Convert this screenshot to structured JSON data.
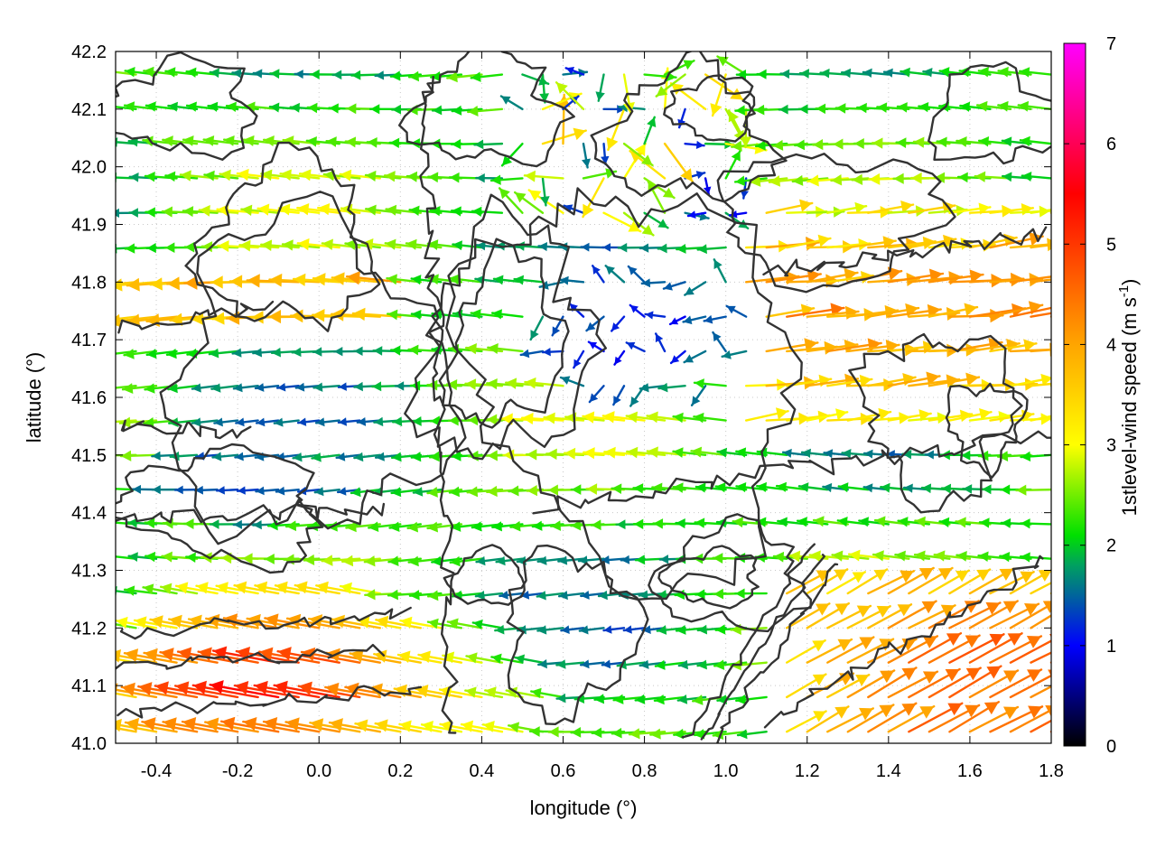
{
  "chart_data": {
    "type": "vector-field",
    "title": "",
    "xlabel": "longitude (°)",
    "ylabel": "latitude (°)",
    "colorbar_label_prefix": "1stlevel-wind speed (m s",
    "colorbar_label_exp": "-1",
    "colorbar_label_suffix": ")",
    "xlim": [
      -0.5,
      1.8
    ],
    "ylim": [
      41.0,
      42.2
    ],
    "xticks": [
      "-0.4",
      "-0.2",
      "0.0",
      "0.2",
      "0.4",
      "0.6",
      "0.8",
      "1.0",
      "1.2",
      "1.4",
      "1.6",
      "1.8"
    ],
    "xtick_values": [
      -0.4,
      -0.2,
      0.0,
      0.2,
      0.4,
      0.6,
      0.8,
      1.0,
      1.2,
      1.4,
      1.6,
      1.8
    ],
    "yticks": [
      "41.0",
      "41.1",
      "41.2",
      "41.3",
      "41.4",
      "41.5",
      "41.6",
      "41.7",
      "41.8",
      "41.9",
      "42.0",
      "42.1",
      "42.2"
    ],
    "ytick_values": [
      41.0,
      41.1,
      41.2,
      41.3,
      41.4,
      41.5,
      41.6,
      41.7,
      41.8,
      41.9,
      42.0,
      42.1,
      42.2
    ],
    "colorbar_range": [
      0,
      7
    ],
    "colorbar_ticks": [
      "0",
      "1",
      "2",
      "3",
      "4",
      "5",
      "6",
      "7"
    ],
    "colorbar_tick_values": [
      0,
      1,
      2,
      3,
      4,
      5,
      6,
      7
    ],
    "colormap_stops": [
      {
        "v": 0,
        "c": "#000000"
      },
      {
        "v": 1,
        "c": "#0000ff"
      },
      {
        "v": 1.8,
        "c": "#00a060"
      },
      {
        "v": 2.1,
        "c": "#00e000"
      },
      {
        "v": 3,
        "c": "#ffff00"
      },
      {
        "v": 4,
        "c": "#ffa500"
      },
      {
        "v": 5.5,
        "c": "#ff0000"
      },
      {
        "v": 7,
        "c": "#ff00ff"
      }
    ],
    "grid": true,
    "contour_color": "#333333",
    "vector_grid": {
      "x_start": -0.45,
      "x_step": 0.05,
      "y_start": 41.02,
      "y_step": 0.06
    }
  }
}
